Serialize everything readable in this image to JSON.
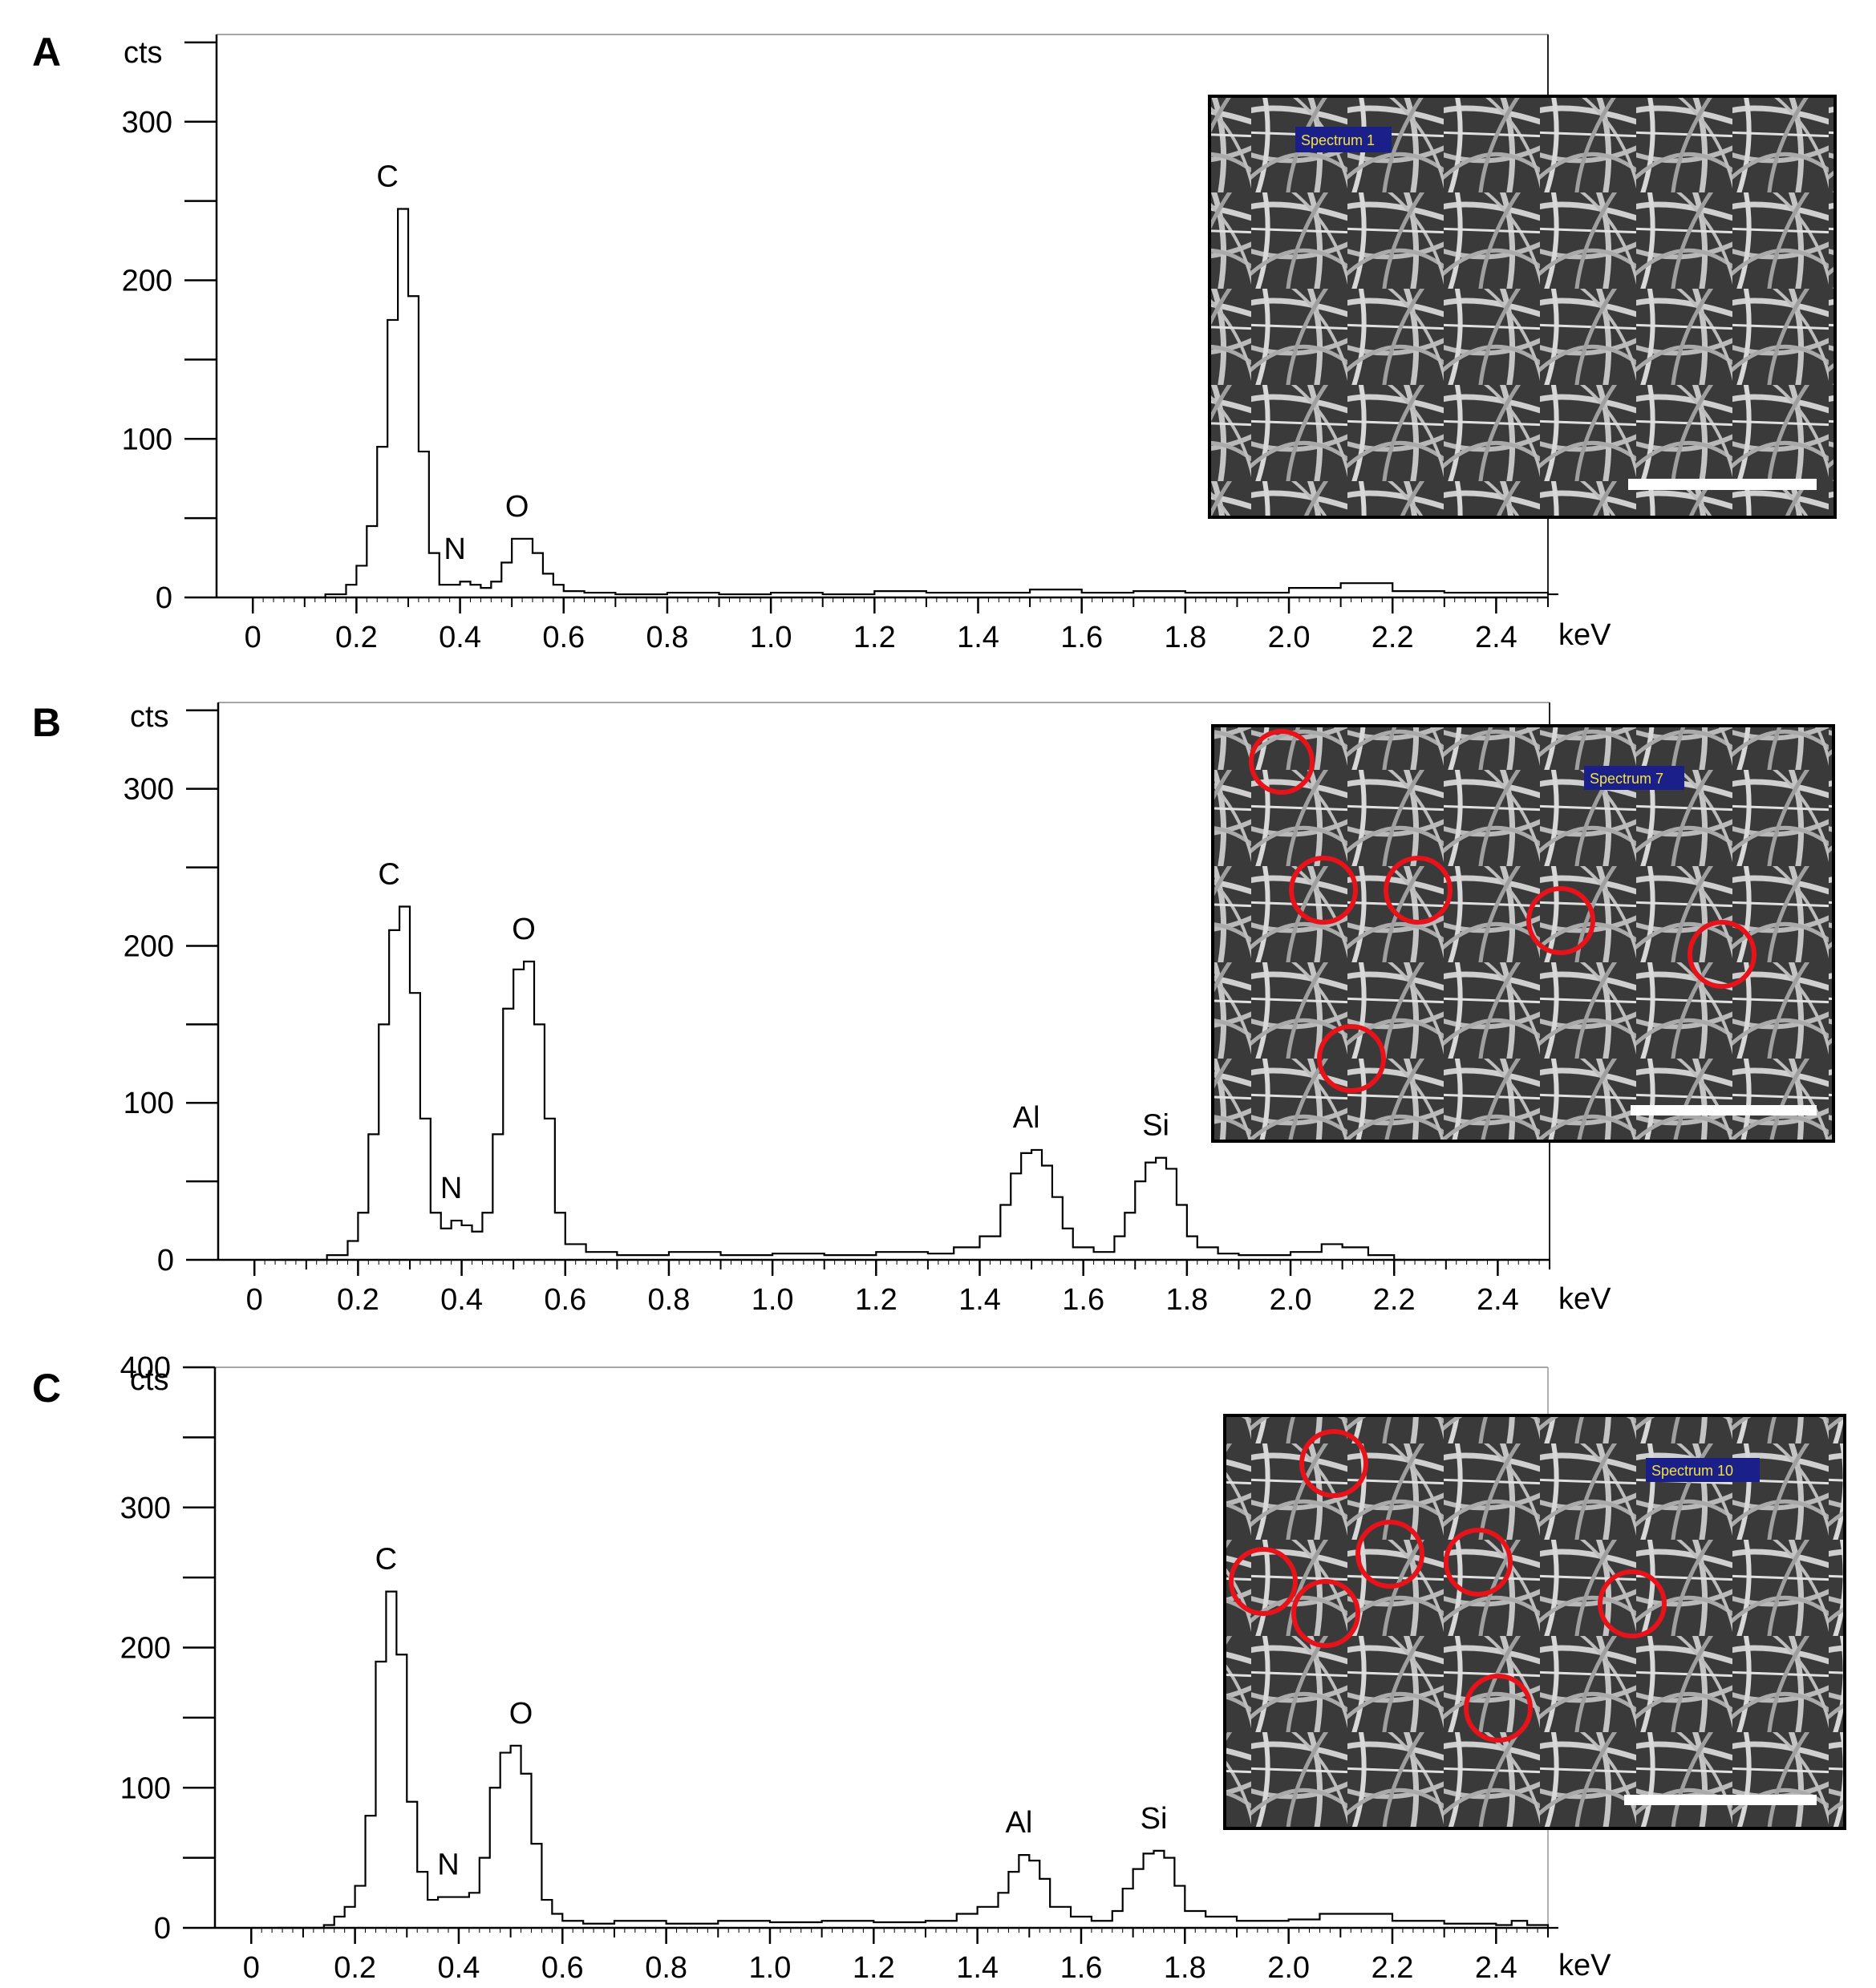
{
  "chart_data": [
    {
      "panel": "A",
      "type": "line",
      "ylabel": "cts",
      "xlabel": "keV",
      "xlim": [
        -0.07,
        2.5
      ],
      "ylim": [
        0,
        355
      ],
      "x_ticks": [
        "0",
        "0.2",
        "0.4",
        "0.6",
        "0.8",
        "1.0",
        "1.2",
        "1.4",
        "1.6",
        "1.8",
        "2.0",
        "2.2",
        "2.4"
      ],
      "y_ticks": [
        "0",
        "100",
        "200",
        "300"
      ],
      "peaks": [
        {
          "label": "C",
          "x": 0.26,
          "y": 245
        },
        {
          "label": "N",
          "x": 0.39,
          "y": 10
        },
        {
          "label": "O",
          "x": 0.51,
          "y": 37
        }
      ],
      "series": [
        {
          "x": [
            0.1,
            0.14,
            0.18,
            0.2,
            0.22,
            0.24,
            0.26,
            0.28,
            0.3,
            0.32,
            0.34,
            0.36,
            0.38,
            0.4,
            0.42,
            0.44,
            0.46,
            0.48,
            0.5,
            0.52,
            0.54,
            0.56,
            0.58,
            0.6,
            0.64,
            0.7,
            0.8,
            0.9,
            1.0,
            1.1,
            1.2,
            1.3,
            1.4,
            1.5,
            1.6,
            1.7,
            1.8,
            1.9,
            2.0,
            2.1,
            2.2,
            2.3,
            2.4,
            2.5
          ],
          "y": [
            0,
            2,
            8,
            20,
            45,
            95,
            175,
            245,
            190,
            92,
            28,
            8,
            8,
            10,
            8,
            6,
            10,
            22,
            37,
            37,
            28,
            15,
            8,
            4,
            3,
            2,
            3,
            2,
            3,
            2,
            4,
            3,
            3,
            5,
            3,
            4,
            3,
            3,
            6,
            9,
            4,
            3,
            3,
            2
          ]
        }
      ],
      "inset": {
        "label": "Spectrum 1"
      }
    },
    {
      "panel": "B",
      "type": "line",
      "ylabel": "cts",
      "xlabel": "keV",
      "xlim": [
        -0.07,
        2.5
      ],
      "ylim": [
        0,
        355
      ],
      "x_ticks": [
        "0",
        "0.2",
        "0.4",
        "0.6",
        "0.8",
        "1.0",
        "1.2",
        "1.4",
        "1.6",
        "1.8",
        "2.0",
        "2.2",
        "2.4"
      ],
      "y_ticks": [
        "0",
        "100",
        "200",
        "300"
      ],
      "peaks": [
        {
          "label": "C",
          "x": 0.26,
          "y": 225
        },
        {
          "label": "N",
          "x": 0.38,
          "y": 25
        },
        {
          "label": "O",
          "x": 0.52,
          "y": 190
        },
        {
          "label": "Al",
          "x": 1.49,
          "y": 70
        },
        {
          "label": "Si",
          "x": 1.74,
          "y": 65
        }
      ],
      "series": [
        {
          "x": [
            0.1,
            0.14,
            0.18,
            0.2,
            0.22,
            0.24,
            0.26,
            0.28,
            0.3,
            0.32,
            0.34,
            0.36,
            0.38,
            0.4,
            0.42,
            0.44,
            0.46,
            0.48,
            0.5,
            0.52,
            0.54,
            0.56,
            0.58,
            0.6,
            0.64,
            0.7,
            0.8,
            0.9,
            1.0,
            1.1,
            1.2,
            1.3,
            1.35,
            1.4,
            1.44,
            1.46,
            1.48,
            1.5,
            1.52,
            1.54,
            1.56,
            1.58,
            1.62,
            1.66,
            1.68,
            1.7,
            1.72,
            1.74,
            1.76,
            1.78,
            1.8,
            1.82,
            1.86,
            1.9,
            2.0,
            2.06,
            2.1,
            2.15,
            2.2
          ],
          "y": [
            0,
            3,
            12,
            30,
            80,
            150,
            210,
            225,
            170,
            90,
            30,
            20,
            25,
            22,
            18,
            30,
            80,
            160,
            185,
            190,
            150,
            90,
            30,
            10,
            5,
            3,
            5,
            3,
            4,
            3,
            5,
            4,
            8,
            15,
            35,
            55,
            68,
            70,
            60,
            40,
            20,
            8,
            5,
            15,
            30,
            50,
            62,
            65,
            58,
            35,
            15,
            8,
            4,
            3,
            5,
            10,
            8,
            3,
            0
          ]
        }
      ],
      "inset": {
        "label": "Spectrum 7"
      }
    },
    {
      "panel": "C",
      "type": "line",
      "ylabel": "cts",
      "xlabel": "keV",
      "xlim": [
        -0.07,
        2.5
      ],
      "ylim": [
        0,
        400
      ],
      "x_ticks": [
        "0",
        "0.2",
        "0.4",
        "0.6",
        "0.8",
        "1.0",
        "1.2",
        "1.4",
        "1.6",
        "1.8",
        "2.0",
        "2.2",
        "2.4"
      ],
      "y_ticks": [
        "0",
        "100",
        "200",
        "300",
        "400"
      ],
      "peaks": [
        {
          "label": "C",
          "x": 0.26,
          "y": 240
        },
        {
          "label": "N",
          "x": 0.38,
          "y": 22
        },
        {
          "label": "O",
          "x": 0.52,
          "y": 130
        },
        {
          "label": "Al",
          "x": 1.48,
          "y": 52
        },
        {
          "label": "Si",
          "x": 1.74,
          "y": 55
        }
      ],
      "series": [
        {
          "x": [
            0.1,
            0.14,
            0.16,
            0.18,
            0.2,
            0.22,
            0.24,
            0.26,
            0.28,
            0.3,
            0.32,
            0.34,
            0.36,
            0.38,
            0.4,
            0.42,
            0.44,
            0.46,
            0.48,
            0.5,
            0.52,
            0.54,
            0.56,
            0.58,
            0.6,
            0.64,
            0.7,
            0.8,
            0.9,
            1.0,
            1.1,
            1.2,
            1.3,
            1.36,
            1.4,
            1.44,
            1.46,
            1.48,
            1.5,
            1.52,
            1.54,
            1.58,
            1.62,
            1.66,
            1.68,
            1.7,
            1.72,
            1.74,
            1.76,
            1.78,
            1.8,
            1.84,
            1.9,
            2.0,
            2.06,
            2.1,
            2.2,
            2.3,
            2.4,
            2.43,
            2.46,
            2.5
          ],
          "y": [
            0,
            2,
            8,
            15,
            30,
            80,
            190,
            240,
            195,
            90,
            40,
            20,
            22,
            22,
            22,
            25,
            50,
            100,
            125,
            130,
            110,
            60,
            20,
            10,
            5,
            3,
            5,
            3,
            5,
            4,
            5,
            4,
            5,
            10,
            15,
            25,
            40,
            52,
            48,
            35,
            15,
            8,
            5,
            12,
            28,
            42,
            53,
            55,
            50,
            30,
            12,
            8,
            5,
            6,
            10,
            10,
            5,
            3,
            2,
            5,
            2,
            0
          ]
        }
      ],
      "inset": {
        "label": "Spectrum 10"
      }
    }
  ]
}
